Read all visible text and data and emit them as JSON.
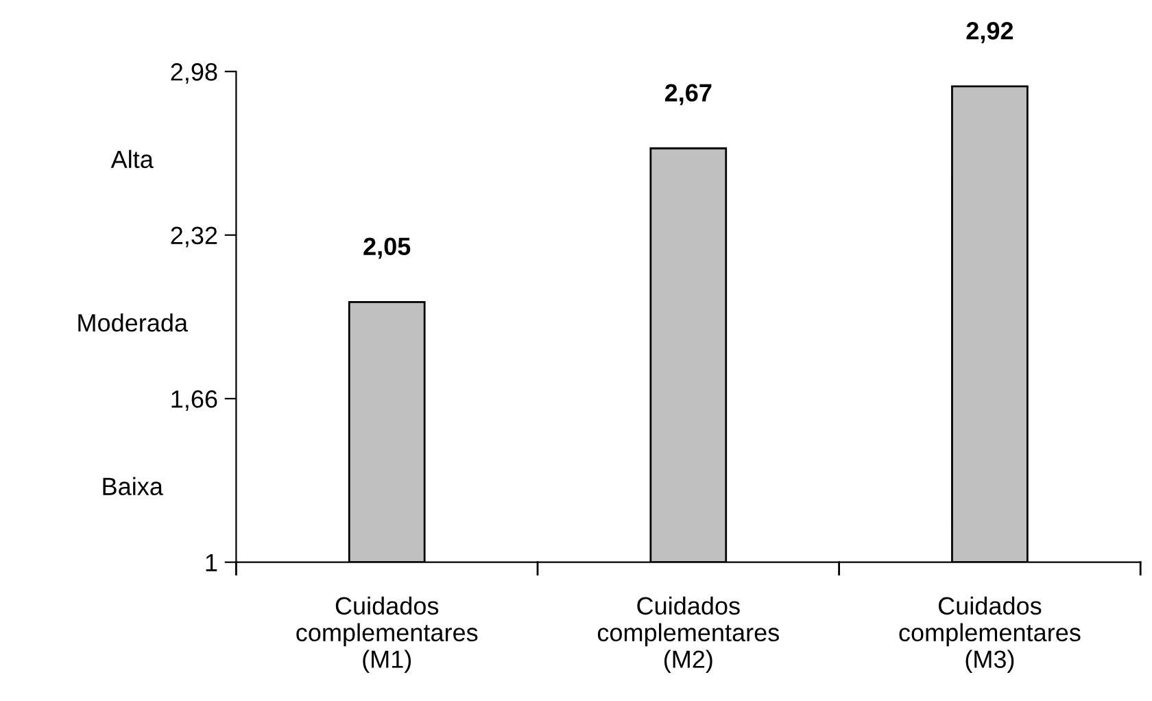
{
  "chart_data": {
    "type": "bar",
    "categories": [
      "Cuidados\ncomplementares\n(M1)",
      "Cuidados\ncomplementares\n(M2)",
      "Cuidados\ncomplementares\n(M3)"
    ],
    "values": [
      2.05,
      2.67,
      2.92
    ],
    "color": "#c0c0c0",
    "value_labels": [
      "2,05",
      "2,67",
      "2,92"
    ],
    "ylim": [
      1,
      2.98
    ],
    "yticks": [
      1,
      {
        "value": 1.66,
        "label": "1,66"
      },
      {
        "value": 2.32,
        "label": "2,32"
      },
      {
        "value": 2.98,
        "label": "2,98"
      }
    ],
    "annotations": [
      "Baixa",
      "Moderada",
      "Alta"
    ],
    "grid": false,
    "legend": false
  }
}
